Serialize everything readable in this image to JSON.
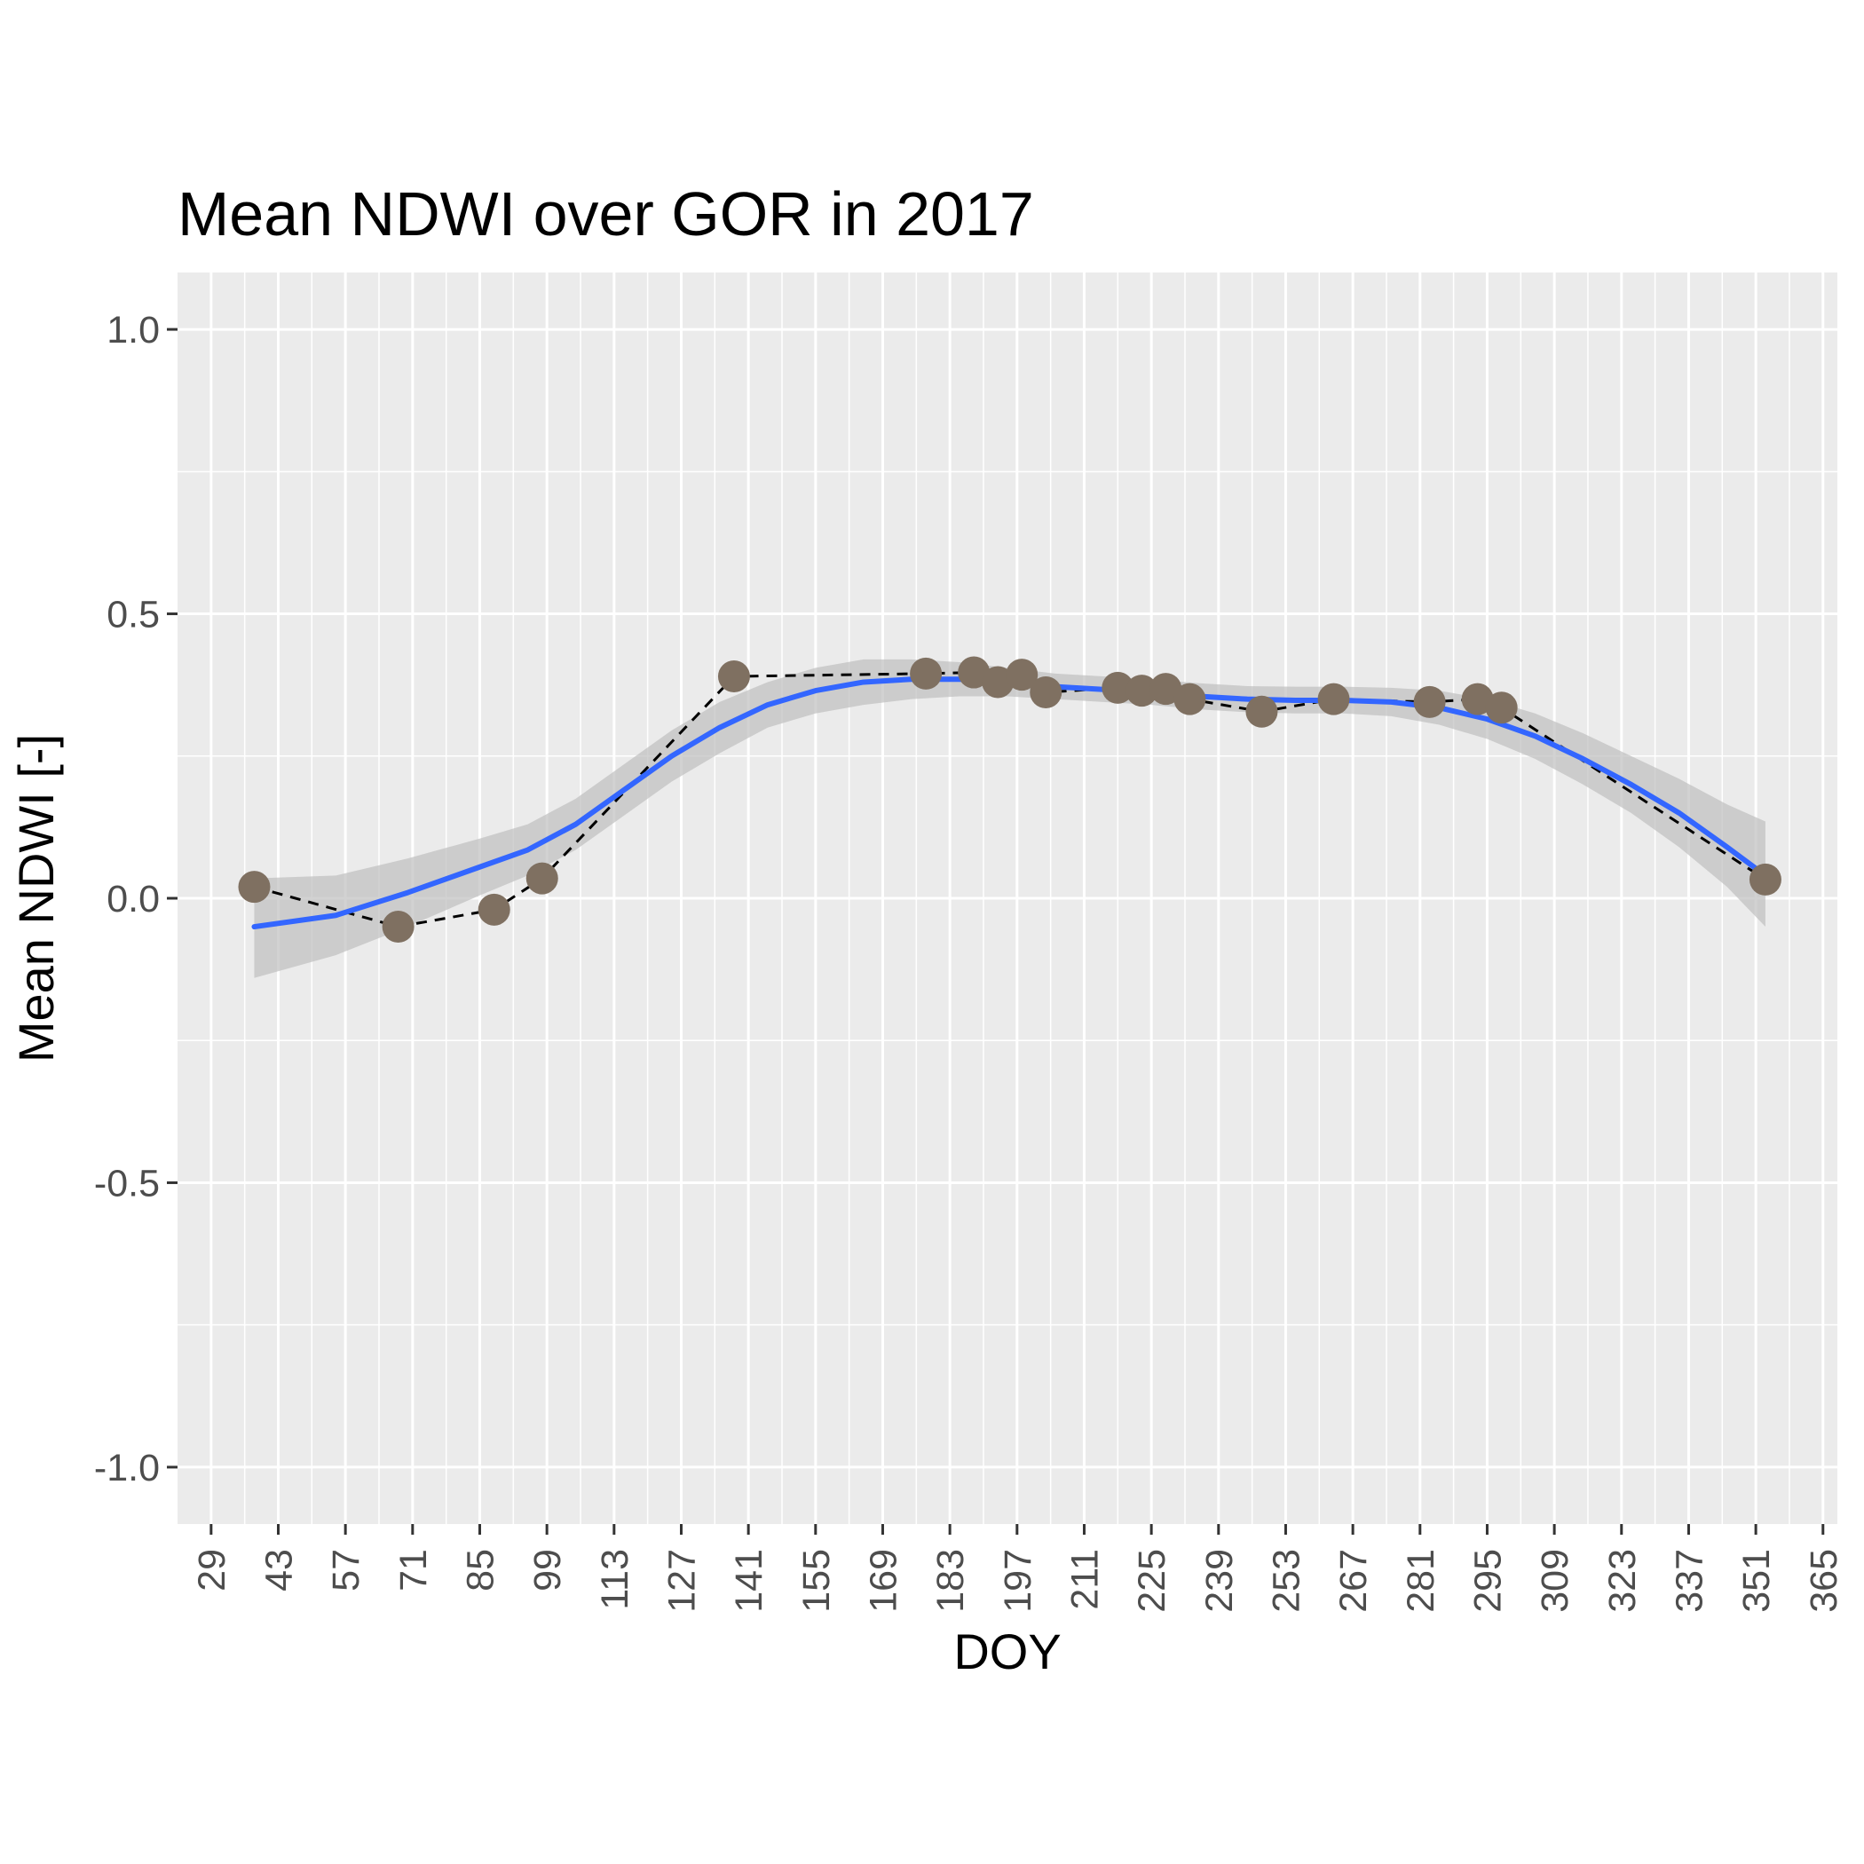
{
  "chart_data": {
    "type": "scatter",
    "title": "Mean NDWI over GOR in 2017",
    "xlabel": "DOY",
    "ylabel": "Mean NDWI [-]",
    "xlim": [
      22,
      368
    ],
    "ylim": [
      -1.1,
      1.1
    ],
    "x_ticks": [
      "29",
      "43",
      "57",
      "71",
      "85",
      "99",
      "113",
      "127",
      "141",
      "155",
      "169",
      "183",
      "197",
      "211",
      "225",
      "239",
      "253",
      "267",
      "281",
      "295",
      "309",
      "323",
      "337",
      "351",
      "365"
    ],
    "y_ticks": [
      "1.0",
      "0.5",
      "0.0",
      "-0.5",
      "-1.0"
    ],
    "grid": true,
    "legend": "none",
    "colors": {
      "panel": "#ebebeb",
      "grid": "#ffffff",
      "points": "#7f7061",
      "smooth_line": "#3366ff",
      "ribbon": "#bfbfbf",
      "dashed_line": "#000000"
    },
    "points": [
      {
        "x": 38,
        "y": 0.02
      },
      {
        "x": 68,
        "y": -0.05
      },
      {
        "x": 88,
        "y": -0.02
      },
      {
        "x": 98,
        "y": 0.035
      },
      {
        "x": 138,
        "y": 0.39
      },
      {
        "x": 178,
        "y": 0.395
      },
      {
        "x": 188,
        "y": 0.397
      },
      {
        "x": 193,
        "y": 0.38
      },
      {
        "x": 198,
        "y": 0.393
      },
      {
        "x": 203,
        "y": 0.362
      },
      {
        "x": 218,
        "y": 0.37
      },
      {
        "x": 223,
        "y": 0.365
      },
      {
        "x": 228,
        "y": 0.368
      },
      {
        "x": 233,
        "y": 0.35
      },
      {
        "x": 248,
        "y": 0.328
      },
      {
        "x": 263,
        "y": 0.35
      },
      {
        "x": 283,
        "y": 0.345
      },
      {
        "x": 293,
        "y": 0.35
      },
      {
        "x": 298,
        "y": 0.335
      },
      {
        "x": 353,
        "y": 0.033
      }
    ],
    "smooth": [
      {
        "x": 38,
        "y": -0.05,
        "lo": -0.14,
        "hi": 0.035
      },
      {
        "x": 55,
        "y": -0.03,
        "lo": -0.1,
        "hi": 0.04
      },
      {
        "x": 70,
        "y": 0.01,
        "lo": -0.05,
        "hi": 0.07
      },
      {
        "x": 85,
        "y": 0.055,
        "lo": 0.005,
        "hi": 0.105
      },
      {
        "x": 95,
        "y": 0.085,
        "lo": 0.04,
        "hi": 0.13
      },
      {
        "x": 105,
        "y": 0.13,
        "lo": 0.085,
        "hi": 0.175
      },
      {
        "x": 115,
        "y": 0.19,
        "lo": 0.145,
        "hi": 0.235
      },
      {
        "x": 125,
        "y": 0.25,
        "lo": 0.205,
        "hi": 0.295
      },
      {
        "x": 135,
        "y": 0.3,
        "lo": 0.255,
        "hi": 0.345
      },
      {
        "x": 145,
        "y": 0.34,
        "lo": 0.3,
        "hi": 0.38
      },
      {
        "x": 155,
        "y": 0.365,
        "lo": 0.325,
        "hi": 0.405
      },
      {
        "x": 165,
        "y": 0.38,
        "lo": 0.34,
        "hi": 0.42
      },
      {
        "x": 175,
        "y": 0.385,
        "lo": 0.35,
        "hi": 0.42
      },
      {
        "x": 185,
        "y": 0.385,
        "lo": 0.355,
        "hi": 0.415
      },
      {
        "x": 195,
        "y": 0.38,
        "lo": 0.355,
        "hi": 0.405
      },
      {
        "x": 205,
        "y": 0.372,
        "lo": 0.35,
        "hi": 0.395
      },
      {
        "x": 215,
        "y": 0.367,
        "lo": 0.345,
        "hi": 0.39
      },
      {
        "x": 225,
        "y": 0.362,
        "lo": 0.34,
        "hi": 0.385
      },
      {
        "x": 235,
        "y": 0.355,
        "lo": 0.332,
        "hi": 0.378
      },
      {
        "x": 245,
        "y": 0.35,
        "lo": 0.327,
        "hi": 0.373
      },
      {
        "x": 255,
        "y": 0.348,
        "lo": 0.325,
        "hi": 0.372
      },
      {
        "x": 265,
        "y": 0.348,
        "lo": 0.325,
        "hi": 0.372
      },
      {
        "x": 275,
        "y": 0.345,
        "lo": 0.32,
        "hi": 0.37
      },
      {
        "x": 285,
        "y": 0.335,
        "lo": 0.305,
        "hi": 0.365
      },
      {
        "x": 295,
        "y": 0.315,
        "lo": 0.28,
        "hi": 0.35
      },
      {
        "x": 305,
        "y": 0.285,
        "lo": 0.245,
        "hi": 0.325
      },
      {
        "x": 315,
        "y": 0.245,
        "lo": 0.2,
        "hi": 0.29
      },
      {
        "x": 325,
        "y": 0.2,
        "lo": 0.15,
        "hi": 0.25
      },
      {
        "x": 335,
        "y": 0.15,
        "lo": 0.09,
        "hi": 0.21
      },
      {
        "x": 345,
        "y": 0.09,
        "lo": 0.02,
        "hi": 0.165
      },
      {
        "x": 353,
        "y": 0.04,
        "lo": -0.05,
        "hi": 0.135
      }
    ]
  }
}
